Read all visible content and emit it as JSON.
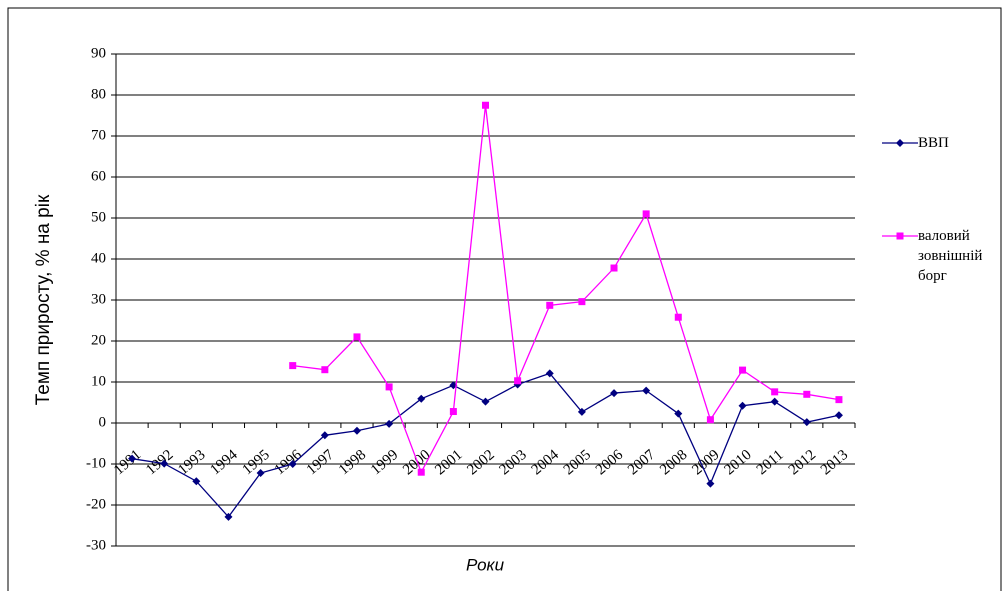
{
  "chart_data": {
    "type": "line",
    "y_label": "Темп приросту, % на рік",
    "x_label": "Роки",
    "categories": [
      "1991",
      "1992",
      "1993",
      "1994",
      "1995",
      "1996",
      "1997",
      "1998",
      "1999",
      "2000",
      "2001",
      "2002",
      "2003",
      "2004",
      "2005",
      "2006",
      "2007",
      "2008",
      "2009",
      "2010",
      "2011",
      "2012",
      "2013"
    ],
    "series": [
      {
        "name": "ВВП",
        "color": "#000080",
        "marker": "diamond",
        "values": [
          -8.7,
          -9.9,
          -14.2,
          -22.9,
          -12.2,
          -10,
          -3,
          -1.9,
          -0.2,
          5.9,
          9.2,
          5.2,
          9.4,
          12.1,
          2.7,
          7.3,
          7.9,
          2.3,
          -14.8,
          4.2,
          5.2,
          0.2,
          1.9
        ]
      },
      {
        "name": "валовий зовнішній борг",
        "color": "#ff00ff",
        "marker": "square",
        "values": [
          null,
          null,
          null,
          null,
          null,
          14,
          13,
          21,
          8.8,
          -12,
          2.8,
          77.5,
          10.3,
          28.7,
          29.6,
          37.8,
          51,
          25.8,
          0.8,
          12.9,
          7.6,
          7,
          5.7
        ]
      }
    ],
    "ylim": [
      -30,
      90
    ],
    "yticks": [
      -30,
      -20,
      -10,
      0,
      10,
      20,
      30,
      40,
      50,
      60,
      70,
      80,
      90
    ],
    "grid": true
  }
}
